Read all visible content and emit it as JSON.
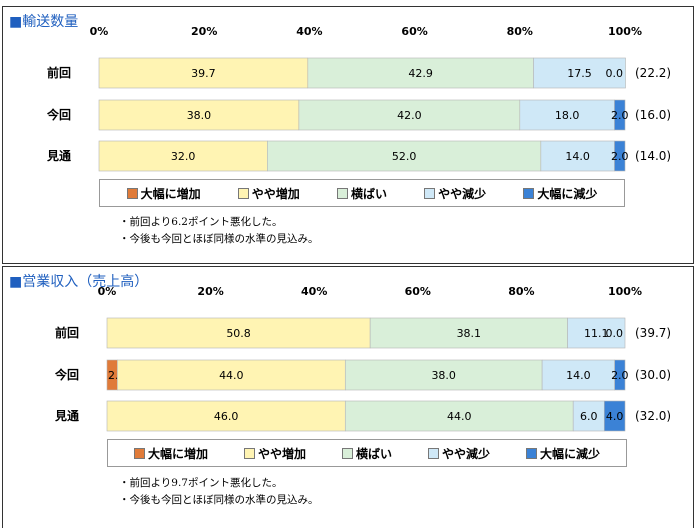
{
  "colors": {
    "large_increase": "#e07b39",
    "slight_increase": "#fff4b3",
    "flat": "#d9efd9",
    "slight_decrease": "#cfe8f7",
    "large_decrease": "#3b82d6",
    "title": "#1f5fbf"
  },
  "legend": [
    "大幅に増加",
    "やや増加",
    "横ばい",
    "やや減少",
    "大幅に減少"
  ],
  "chart_data": [
    {
      "type": "bar",
      "title": "■輸送数量",
      "x_ticks": [
        "0%",
        "20%",
        "40%",
        "60%",
        "80%",
        "100%"
      ],
      "categories": [
        "前回",
        "今回",
        "見通"
      ],
      "series": [
        {
          "name": "大幅に増加",
          "values": [
            0.0,
            0.0,
            0.0
          ]
        },
        {
          "name": "やや増加",
          "values": [
            39.7,
            38.0,
            32.0
          ]
        },
        {
          "name": "横ばい",
          "values": [
            42.9,
            42.0,
            52.0
          ]
        },
        {
          "name": "やや減少",
          "values": [
            17.5,
            18.0,
            14.0
          ]
        },
        {
          "name": "大幅に減少",
          "values": [
            0.0,
            2.0,
            2.0
          ]
        }
      ],
      "di_values": [
        "(22.2)",
        "(16.0)",
        "(14.0)"
      ],
      "xlim": [
        0,
        100
      ],
      "legend_position": "bottom",
      "notes": [
        "前回より6.2ポイント悪化した。",
        "今後も今回とほぼ同様の水準の見込み。"
      ]
    },
    {
      "type": "bar",
      "title": "■営業収入（売上高）",
      "x_ticks": [
        "0%",
        "20%",
        "40%",
        "60%",
        "80%",
        "100%"
      ],
      "categories": [
        "前回",
        "今回",
        "見通"
      ],
      "series": [
        {
          "name": "大幅に増加",
          "values": [
            0.0,
            2.0,
            0.0
          ]
        },
        {
          "name": "やや増加",
          "values": [
            50.8,
            44.0,
            46.0
          ]
        },
        {
          "name": "横ばい",
          "values": [
            38.1,
            38.0,
            44.0
          ]
        },
        {
          "name": "やや減少",
          "values": [
            11.1,
            14.0,
            6.0
          ]
        },
        {
          "name": "大幅に減少",
          "values": [
            0.0,
            2.0,
            4.0
          ]
        }
      ],
      "di_values": [
        "(39.7)",
        "(30.0)",
        "(32.0)"
      ],
      "xlim": [
        0,
        100
      ],
      "legend_position": "bottom",
      "notes": [
        "前回より9.7ポイント悪化した。",
        "今後も今回とほぼ同様の水準の見込み。"
      ]
    }
  ]
}
